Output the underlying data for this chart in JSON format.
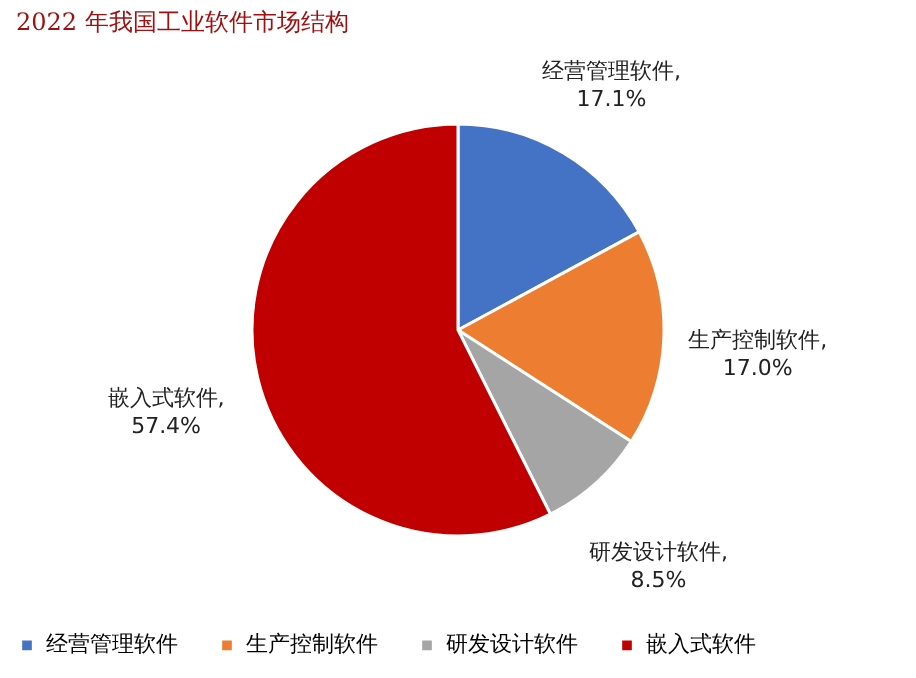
{
  "chart_data": {
    "type": "pie",
    "title": "2022 年我国工业软件市场结构",
    "categories": [
      "经营管理软件",
      "生产控制软件",
      "研发设计软件",
      "嵌入式软件"
    ],
    "values": [
      17.1,
      17.0,
      8.5,
      57.4
    ],
    "colors": [
      "#4472c4",
      "#ed7d31",
      "#a5a5a5",
      "#c00000"
    ],
    "value_labels": [
      "经营管理软件,\n17.1%",
      "生产控制软件,\n17.0%",
      "研发设计软件,\n8.5%",
      "嵌入式软件,\n57.4%"
    ],
    "legend": "bottom"
  }
}
